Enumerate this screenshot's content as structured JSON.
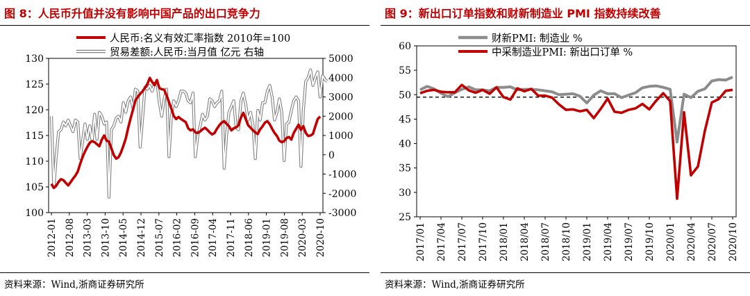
{
  "left": {
    "title": "图 8：人民币升值并没有影响中国产品的出口竞争力",
    "source": "资料来源：Wind,浙商证券研究所",
    "chart_data": {
      "type": "line",
      "x_ticks": [
        "2012-01",
        "2012-08",
        "2013-03",
        "2013-10",
        "2014-05",
        "2014-12",
        "2015-07",
        "2016-02",
        "2016-09",
        "2017-04",
        "2017-11",
        "2018-06",
        "2019-01",
        "2019-08",
        "2020-03",
        "2020-10"
      ],
      "ylim_left": [
        100,
        130
      ],
      "yticks_left": [
        "100",
        "105",
        "110",
        "115",
        "120",
        "125",
        "130"
      ],
      "ylim_right": [
        -3000,
        5000
      ],
      "yticks_right": [
        "-3000",
        "-2000",
        "-1000",
        "0",
        "1000",
        "2000",
        "3000",
        "4000",
        "5000"
      ],
      "legend_placement": "top-center",
      "colors": {
        "rmb": "#c00000",
        "trade": "#808080"
      },
      "series": [
        {
          "name": "人民币:名义有效汇率指数 2010年=100",
          "axis": "left",
          "style": "solid-thick",
          "values": [
            105.6,
            104.8,
            105.2,
            106.0,
            106.5,
            106.3,
            105.8,
            105.3,
            105.9,
            106.6,
            107.2,
            108.0,
            109.5,
            110.8,
            111.9,
            112.8,
            113.6,
            113.9,
            113.7,
            113.3,
            112.9,
            114.2,
            115.0,
            114.0,
            113.8,
            112.5,
            111.2,
            110.5,
            110.8,
            111.7,
            113.0,
            114.4,
            116.5,
            118.3,
            120.0,
            121.8,
            122.5,
            123.1,
            123.6,
            124.3,
            125.0,
            126.2,
            125.4,
            124.8,
            125.8,
            124.2,
            124.0,
            123.9,
            122.8,
            121.5,
            120.2,
            118.8,
            118.2,
            118.6,
            118.2,
            117.9,
            117.6,
            116.4,
            116.0,
            116.2,
            115.6,
            115.5,
            115.8,
            116.2,
            116.5,
            116.1,
            115.6,
            115.2,
            115.5,
            116.3,
            117.0,
            117.5,
            117.8,
            117.3,
            116.8,
            116.0,
            116.4,
            116.6,
            117.0,
            118.5,
            119.4,
            118.2,
            117.0,
            116.5,
            116.0,
            115.6,
            115.3,
            116.2,
            116.8,
            117.5,
            117.8,
            117.2,
            116.3,
            115.5,
            114.9,
            114.0,
            113.7,
            113.9,
            114.5,
            114.7,
            114.2,
            115.5,
            116.3,
            117.1,
            116.1,
            116.8,
            115.5,
            114.9,
            115.0,
            115.3,
            116.8,
            118.2,
            118.7
          ]
        },
        {
          "name": "贸易差额:人民币:当月值 亿元 右轴",
          "axis": "right",
          "style": "double-outline",
          "values": [
            2000,
            -1700,
            -100,
            1200,
            1300,
            1700,
            1500,
            1800,
            1500,
            1200,
            1800,
            1700,
            -200,
            700,
            1600,
            800,
            1500,
            700,
            2100,
            800,
            2200,
            2000,
            1600,
            1700,
            -2200,
            1300,
            1500,
            1900,
            2000,
            1700,
            2700,
            2200,
            2800,
            3000,
            2400,
            3400,
            3300,
            400,
            1900,
            3500,
            3400,
            3600,
            3300,
            3700,
            3800,
            2700,
            2000,
            2900,
            3400,
            -100,
            2000,
            2800,
            2500,
            2800,
            3300,
            3300,
            3200,
            2800,
            2700,
            3200,
            -100,
            1000,
            1500,
            2100,
            1800,
            2000,
            2900,
            2800,
            2500,
            2700,
            2800,
            3300,
            -700,
            1000,
            2200,
            2500,
            2800,
            1400,
            1300,
            2800,
            3200,
            2600,
            1800,
            2200,
            1500,
            -200,
            2300,
            1800,
            2700,
            2700,
            3300,
            3600,
            3000,
            1800,
            2200,
            2900,
            2200,
            -300,
            1600,
            1700,
            2300,
            2800,
            3000,
            2800,
            -600,
            2300,
            3800,
            4000,
            4400,
            3600,
            4000,
            4300,
            3000,
            4100,
            3900,
            3800
          ]
        }
      ]
    }
  },
  "right": {
    "title": "图 9：新出口订单指数和财新制造业 PMI 指数持续改善",
    "source": "资料来源：Wind,浙商证券研究所",
    "chart_data": {
      "type": "line",
      "x_ticks": [
        "2017/01",
        "2017/04",
        "2017/07",
        "2017/10",
        "2018/01",
        "2018/04",
        "2018/07",
        "2018/10",
        "2019/01",
        "2019/04",
        "2019/07",
        "2019/10",
        "2020/01",
        "2020/04",
        "2020/07",
        "2020/10"
      ],
      "ylim": [
        25,
        60
      ],
      "yticks": [
        "25",
        "30",
        "35",
        "40",
        "45",
        "50",
        "55",
        "60"
      ],
      "reference_line": 49.5,
      "legend_placement": "top-left",
      "colors": {
        "caixin": "#8c8c8c",
        "nbs": "#c00000",
        "reference": "#000000"
      },
      "series": [
        {
          "name": "财新PMI: 制造业 %",
          "values": [
            51.0,
            51.7,
            51.2,
            50.3,
            49.6,
            50.4,
            51.1,
            51.6,
            51.0,
            51.0,
            50.8,
            51.5,
            51.5,
            51.6,
            51.0,
            51.1,
            51.1,
            51.0,
            50.8,
            50.6,
            50.0,
            50.1,
            50.2,
            49.7,
            48.3,
            49.9,
            50.8,
            50.2,
            50.2,
            49.4,
            49.9,
            50.4,
            51.4,
            51.7,
            51.8,
            51.5,
            51.1,
            40.3,
            50.1,
            49.4,
            50.7,
            51.2,
            52.8,
            53.1,
            53.0,
            53.6
          ]
        },
        {
          "name": "中采制造业PMI: 新出口订单 %",
          "values": [
            50.3,
            50.8,
            51.0,
            50.6,
            50.5,
            50.5,
            52.0,
            50.9,
            50.4,
            51.0,
            50.2,
            51.5,
            49.5,
            49.0,
            51.3,
            50.7,
            51.2,
            49.8,
            49.8,
            49.4,
            48.0,
            46.9,
            47.0,
            46.6,
            46.9,
            45.2,
            47.1,
            49.2,
            46.5,
            46.3,
            46.9,
            47.2,
            48.1,
            47.0,
            48.8,
            50.3,
            48.7,
            28.7,
            46.4,
            33.5,
            35.3,
            42.6,
            48.4,
            49.1,
            50.8,
            51.0
          ]
        }
      ]
    }
  }
}
